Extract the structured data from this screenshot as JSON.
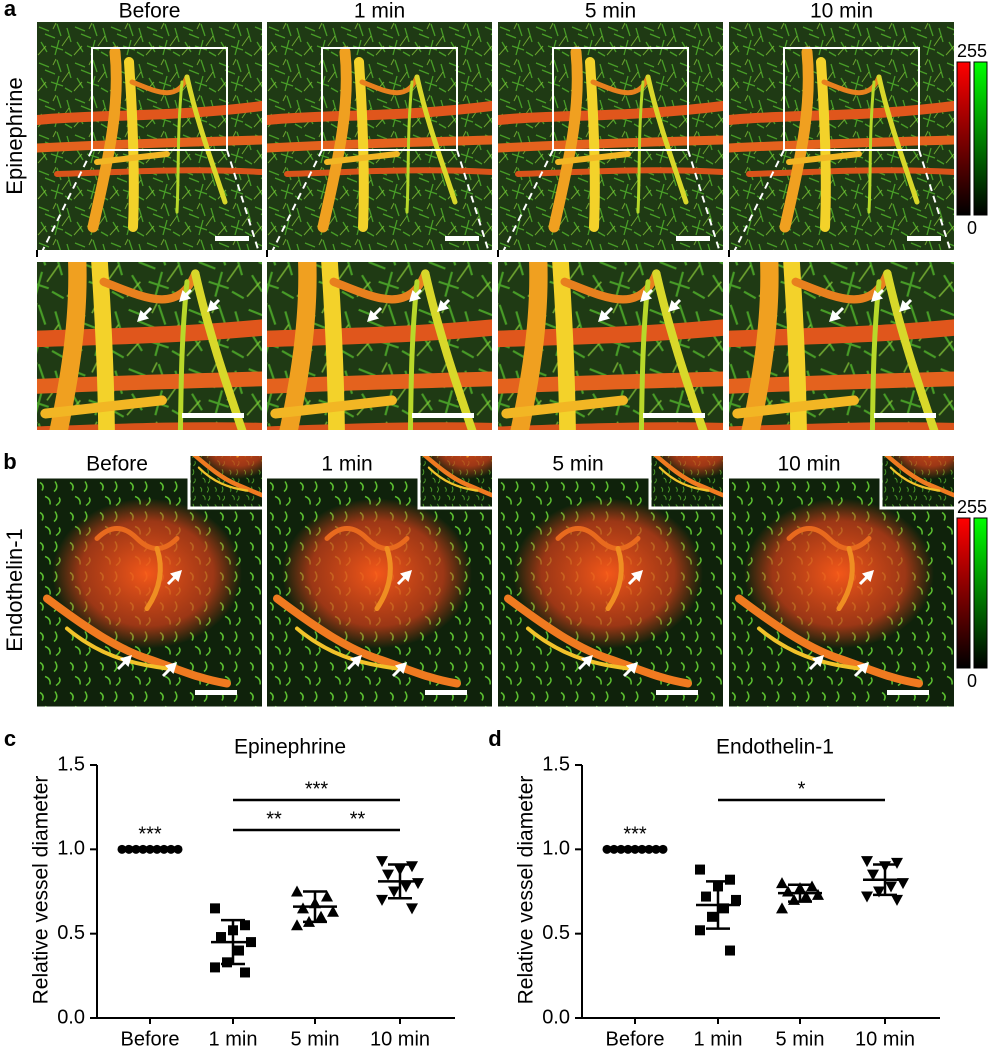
{
  "panels": {
    "a": {
      "letter": "a",
      "row_label": "Epinephrine",
      "time_labels": [
        "Before",
        "1 min",
        "5 min",
        "10 min"
      ],
      "colorbar": {
        "max": "255",
        "min": "0"
      }
    },
    "b": {
      "letter": "b",
      "row_label": "Endothelin-1",
      "time_labels": [
        "Before",
        "1 min",
        "5 min",
        "10 min"
      ],
      "colorbar": {
        "max": "255",
        "min": "0"
      }
    }
  },
  "chart_data": [
    {
      "type": "dot",
      "panel_label": "c",
      "title": "Epinephrine",
      "y_label": "Relative vessel diameter",
      "categories": [
        "Before",
        "1 min",
        "5 min",
        "10 min"
      ],
      "markers": [
        "circle",
        "square",
        "triangle",
        "triangle-down"
      ],
      "points": [
        [
          1,
          1,
          1,
          1,
          1,
          1,
          1,
          1,
          1
        ],
        [
          0.65,
          0.55,
          0.52,
          0.48,
          0.45,
          0.4,
          0.33,
          0.3,
          0.27
        ],
        [
          0.75,
          0.72,
          0.68,
          0.65,
          0.63,
          0.6,
          0.57,
          0.55
        ],
        [
          0.93,
          0.9,
          0.88,
          0.85,
          0.8,
          0.78,
          0.75,
          0.7,
          0.65
        ]
      ],
      "mean": [
        1,
        0.45,
        0.66,
        0.81
      ],
      "sd": [
        0,
        0.13,
        0.09,
        0.1
      ],
      "ylim": [
        0,
        1.5
      ],
      "yticks": [
        {
          "value": 0,
          "label": "0.0"
        },
        {
          "value": 0.5,
          "label": "0.5"
        },
        {
          "value": 1,
          "label": "1.0"
        },
        {
          "value": 1.5,
          "label": "1.5"
        }
      ],
      "annotations": [
        {
          "category": "Before",
          "label": "***"
        }
      ],
      "comparisons": [
        {
          "from": "1 min",
          "to": "10 min",
          "label": "***"
        },
        {
          "from": "1 min",
          "to": "5 min",
          "label": "**"
        },
        {
          "from": "5 min",
          "to": "10 min",
          "label": "**"
        }
      ]
    },
    {
      "type": "dot",
      "panel_label": "d",
      "title": "Endothelin-1",
      "y_label": "Relative vessel diameter",
      "categories": [
        "Before",
        "1 min",
        "5 min",
        "10 min"
      ],
      "markers": [
        "circle",
        "square",
        "triangle",
        "triangle-down"
      ],
      "points": [
        [
          1,
          1,
          1,
          1,
          1,
          1,
          1,
          1,
          1
        ],
        [
          0.88,
          0.82,
          0.78,
          0.72,
          0.7,
          0.65,
          0.6,
          0.52,
          0.4
        ],
        [
          0.8,
          0.78,
          0.77,
          0.75,
          0.73,
          0.72,
          0.7,
          0.65
        ],
        [
          0.93,
          0.92,
          0.9,
          0.85,
          0.8,
          0.78,
          0.75,
          0.72,
          0.7
        ]
      ],
      "mean": [
        1,
        0.67,
        0.74,
        0.82
      ],
      "sd": [
        0,
        0.14,
        0.05,
        0.09
      ],
      "ylim": [
        0,
        1.5
      ],
      "yticks": [
        {
          "value": 0,
          "label": "0.0"
        },
        {
          "value": 0.5,
          "label": "0.5"
        },
        {
          "value": 1,
          "label": "1.0"
        },
        {
          "value": 1.5,
          "label": "1.5"
        }
      ],
      "annotations": [
        {
          "category": "Before",
          "label": "***"
        }
      ],
      "comparisons": [
        {
          "from": "1 min",
          "to": "10 min",
          "label": "*"
        }
      ]
    }
  ]
}
